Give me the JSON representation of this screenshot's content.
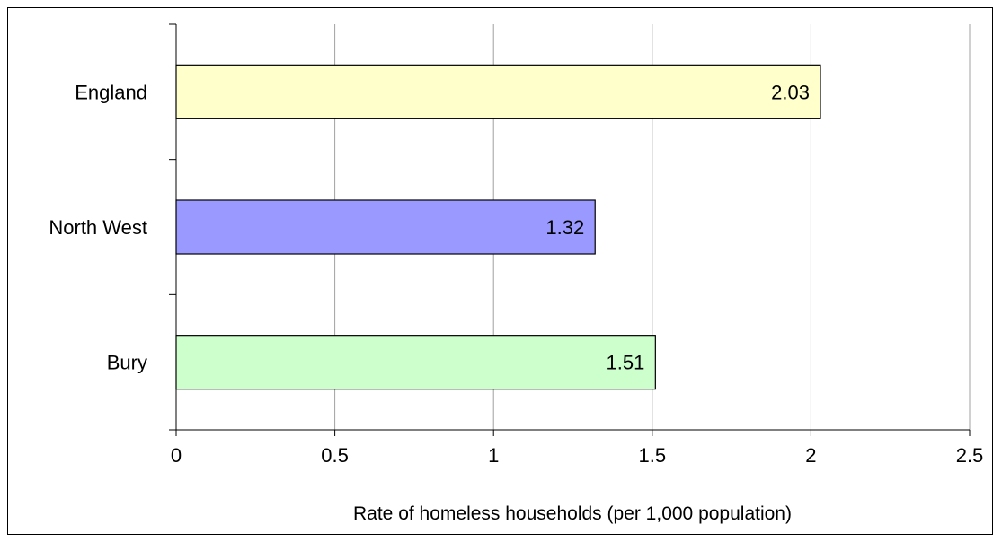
{
  "chart_data": {
    "type": "bar",
    "orientation": "horizontal",
    "categories": [
      "England",
      "North West",
      "Bury"
    ],
    "values": [
      2.03,
      1.32,
      1.51
    ],
    "data_labels": [
      "2.03",
      "1.32",
      "1.51"
    ],
    "colors": [
      "#ffffcc",
      "#9999ff",
      "#ccffcc"
    ],
    "xlabel": "Rate of homeless households (per 1,000 population)",
    "xlim": [
      0,
      2.5
    ],
    "xticks": [
      0,
      0.5,
      1,
      1.5,
      2,
      2.5
    ],
    "xtick_labels": [
      "0",
      "0.5",
      "1",
      "1.5",
      "2",
      "2.5"
    ],
    "grid": "vertical",
    "gridline_color": "#a0a0a0"
  }
}
